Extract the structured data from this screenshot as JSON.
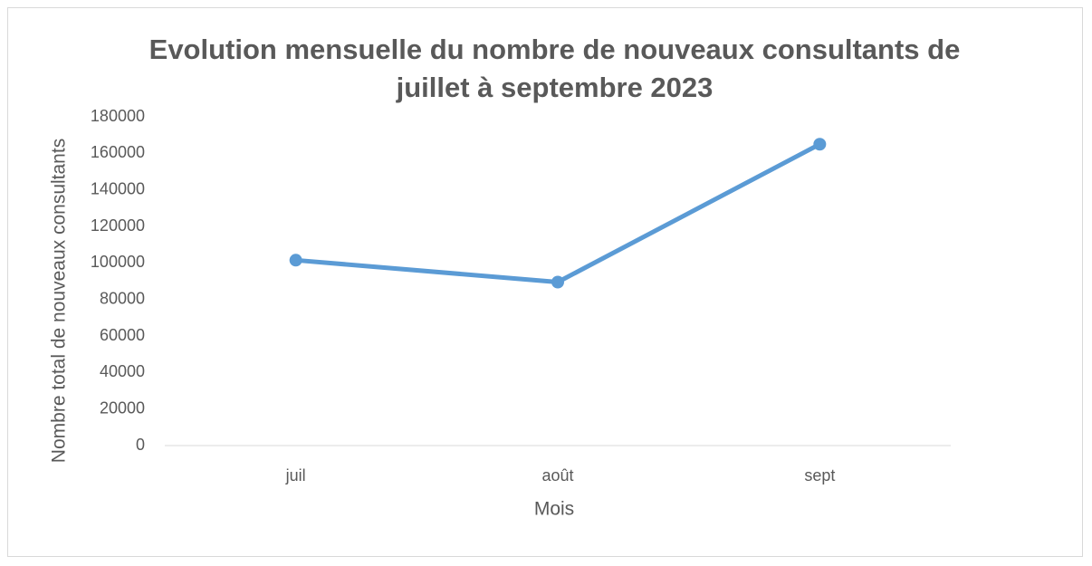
{
  "chart_data": {
    "type": "line",
    "title": "Evolution mensuelle du nombre de nouveaux consultants de juillet à septembre 2023",
    "x_label": "Mois",
    "y_label": "Nombre total de nouveaux consultants",
    "categories": [
      "juil",
      "août",
      "sept"
    ],
    "series": [
      {
        "name": "Nombre total de nouveaux consultants",
        "color": "#5b9bd5",
        "values": [
          101500,
          89500,
          165000
        ]
      }
    ],
    "ylim": [
      0,
      180000
    ],
    "yticks": [
      0,
      20000,
      40000,
      60000,
      80000,
      100000,
      120000,
      140000,
      160000,
      180000
    ],
    "grid": false
  }
}
